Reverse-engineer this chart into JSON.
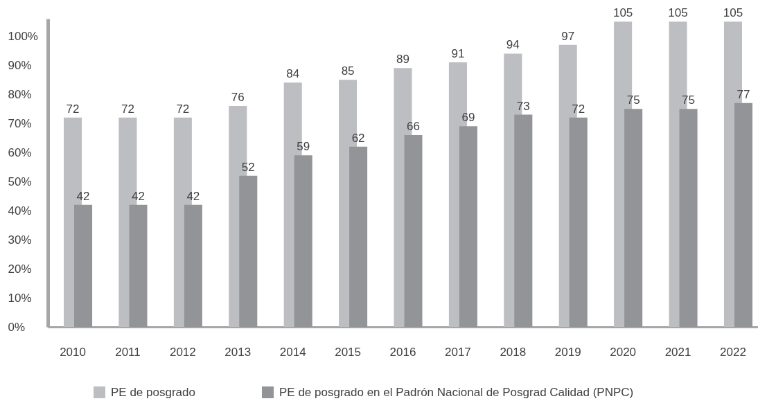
{
  "chart_data": {
    "type": "bar",
    "categories": [
      "2010",
      "2011",
      "2012",
      "2013",
      "2014",
      "2015",
      "2016",
      "2017",
      "2018",
      "2019",
      "2020",
      "2021",
      "2022"
    ],
    "series": [
      {
        "name": "PE de posgrado",
        "color": "#bdbec1",
        "values": [
          72,
          72,
          72,
          76,
          84,
          85,
          89,
          91,
          94,
          97,
          105,
          105,
          105
        ]
      },
      {
        "name": "PE de posgrado en el Padrón Nacional de Posgrad Calidad (PNPC)",
        "color": "#939498",
        "values": [
          42,
          42,
          42,
          52,
          59,
          62,
          66,
          69,
          73,
          72,
          75,
          75,
          77
        ]
      }
    ],
    "ylim": [
      0,
      106
    ],
    "yticks": [
      {
        "value": 0,
        "label": "0%"
      },
      {
        "value": 10,
        "label": "10%"
      },
      {
        "value": 20,
        "label": "20%"
      },
      {
        "value": 30,
        "label": "30%"
      },
      {
        "value": 40,
        "label": "40%"
      },
      {
        "value": 50,
        "label": "50%"
      },
      {
        "value": 60,
        "label": "60%"
      },
      {
        "value": 70,
        "label": "70%"
      },
      {
        "value": 80,
        "label": "80%"
      },
      {
        "value": 90,
        "label": "90%"
      },
      {
        "value": 100,
        "label": "100%"
      }
    ],
    "data_labels": true,
    "legend": "bottom"
  }
}
